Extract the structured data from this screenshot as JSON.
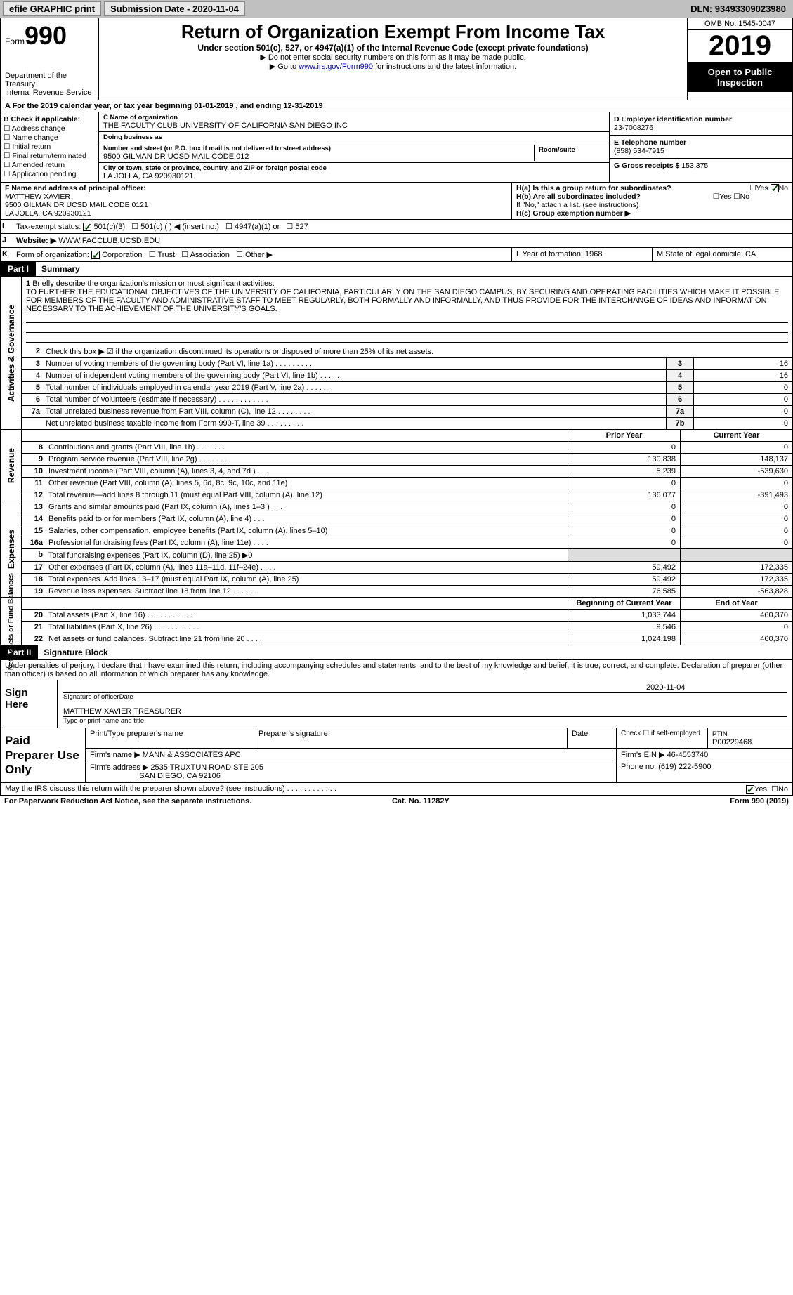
{
  "topbar": {
    "efile": "efile GRAPHIC print",
    "subdate_label": "Submission Date - ",
    "subdate": "2020-11-04",
    "dln_label": "DLN: ",
    "dln": "93493309023980"
  },
  "header": {
    "form_word": "Form",
    "form_num": "990",
    "dept": "Department of the Treasury\nInternal Revenue Service",
    "title": "Return of Organization Exempt From Income Tax",
    "sub": "Under section 501(c), 527, or 4947(a)(1) of the Internal Revenue Code (except private foundations)",
    "line1": "▶ Do not enter social security numbers on this form as it may be made public.",
    "line2a": "▶ Go to ",
    "line2link": "www.irs.gov/Form990",
    "line2b": " for instructions and the latest information.",
    "omb": "OMB No. 1545-0047",
    "year": "2019",
    "inspect": "Open to Public Inspection"
  },
  "rowA": "A For the 2019 calendar year, or tax year beginning 01-01-2019    , and ending 12-31-2019",
  "colB": {
    "hdr": "B Check if applicable:",
    "items": [
      "Address change",
      "Name change",
      "Initial return",
      "Final return/terminated",
      "Amended return",
      "Application pending"
    ]
  },
  "colC": {
    "name_lbl": "C Name of organization",
    "name": "THE FACULTY CLUB UNIVERSITY OF CALIFORNIA SAN DIEGO INC",
    "dba_lbl": "Doing business as",
    "dba": "",
    "addr_lbl": "Number and street (or P.O. box if mail is not delivered to street address)",
    "addr": "9500 GILMAN DR UCSD MAIL CODE 012",
    "room_lbl": "Room/suite",
    "city_lbl": "City or town, state or province, country, and ZIP or foreign postal code",
    "city": "LA JOLLA, CA  920930121"
  },
  "colD": {
    "ein_lbl": "D Employer identification number",
    "ein": "23-7008276",
    "tel_lbl": "E Telephone number",
    "tel": "(858) 534-7915",
    "gross_lbl": "G Gross receipts $ ",
    "gross": "153,375"
  },
  "rowF": {
    "lbl": "F Name and address of principal officer:",
    "name": "MATTHEW XAVIER",
    "addr1": "9500 GILMAN DR UCSD MAIL CODE 0121",
    "addr2": "LA JOLLA, CA  920930121"
  },
  "rowH": {
    "ha": "H(a)  Is this a group return for subordinates?",
    "ha_yes": "Yes",
    "ha_no": "No",
    "hb": "H(b)  Are all subordinates included?",
    "hb_yes": "Yes",
    "hb_no": "No",
    "hb_note": "If \"No,\" attach a list. (see instructions)",
    "hc": "H(c)  Group exemption number ▶"
  },
  "rowI": {
    "lbl": "I",
    "txt": "Tax-exempt status:",
    "opts": [
      "501(c)(3)",
      "501(c) (  ) ◀ (insert no.)",
      "4947(a)(1) or",
      "527"
    ]
  },
  "rowJ": {
    "lbl": "J",
    "txt": "Website: ▶ ",
    "val": "WWW.FACCLUB.UCSD.EDU"
  },
  "rowK": {
    "lbl": "K",
    "txt": "Form of organization:",
    "opts": [
      "Corporation",
      "Trust",
      "Association",
      "Other ▶"
    ]
  },
  "rowL": "L Year of formation: 1968",
  "rowM": "M State of legal domicile: CA",
  "part1": {
    "tab": "Part I",
    "title": "Summary",
    "side_ag": "Activities & Governance",
    "side_rev": "Revenue",
    "side_exp": "Expenses",
    "side_na": "Net Assets or Fund Balances",
    "l1_lbl": "1",
    "l1_txt": "Briefly describe the organization's mission or most significant activities:",
    "l1_mission": "TO FURTHER THE EDUCATIONAL OBJECTIVES OF THE UNIVERSITY OF CALIFORNIA, PARTICULARLY ON THE SAN DIEGO CAMPUS, BY SECURING AND OPERATING FACILITIES WHICH MAKE IT POSSIBLE FOR MEMBERS OF THE FACULTY AND ADMINISTRATIVE STAFF TO MEET REGULARLY, BOTH FORMALLY AND INFORMALLY, AND THUS PROVIDE FOR THE INTERCHANGE OF IDEAS AND INFORMATION NECESSARY TO THE ACHIEVEMENT OF THE UNIVERSITY'S GOALS.",
    "l2_txt": "Check this box ▶ ☑ if the organization discontinued its operations or disposed of more than 25% of its net assets.",
    "lines_gov": [
      {
        "n": "3",
        "t": "Number of voting members of the governing body (Part VI, line 1a)  .    .    .    .    .    .    .    .    .",
        "k": "3",
        "v": "16"
      },
      {
        "n": "4",
        "t": "Number of independent voting members of the governing body (Part VI, line 1b)    .    .    .    .    .",
        "k": "4",
        "v": "16"
      },
      {
        "n": "5",
        "t": "Total number of individuals employed in calendar year 2019 (Part V, line 2a)    .    .    .    .    .    .",
        "k": "5",
        "v": "0"
      },
      {
        "n": "6",
        "t": "Total number of volunteers (estimate if necessary)    .    .    .    .    .    .    .    .    .    .    .    .",
        "k": "6",
        "v": "0"
      },
      {
        "n": "7a",
        "t": "Total unrelated business revenue from Part VIII, column (C), line 12    .    .    .    .    .    .    .    .",
        "k": "7a",
        "v": "0"
      },
      {
        "n": "",
        "t": "Net unrelated business taxable income from Form 990-T, line 39    .    .    .    .    .    .    .    .    .",
        "k": "7b",
        "v": "0"
      }
    ],
    "col_prior": "Prior Year",
    "col_curr": "Current Year",
    "lines_rev": [
      {
        "n": "8",
        "t": "Contributions and grants (Part VIII, line 1h)    .    .    .    .    .    .    .",
        "p": "0",
        "c": "0"
      },
      {
        "n": "9",
        "t": "Program service revenue (Part VIII, line 2g)    .    .    .    .    .    .    .",
        "p": "130,838",
        "c": "148,137"
      },
      {
        "n": "10",
        "t": "Investment income (Part VIII, column (A), lines 3, 4, and 7d )    .    .    .",
        "p": "5,239",
        "c": "-539,630"
      },
      {
        "n": "11",
        "t": "Other revenue (Part VIII, column (A), lines 5, 6d, 8c, 9c, 10c, and 11e)",
        "p": "0",
        "c": "0"
      },
      {
        "n": "12",
        "t": "Total revenue—add lines 8 through 11 (must equal Part VIII, column (A), line 12)",
        "p": "136,077",
        "c": "-391,493"
      }
    ],
    "lines_exp": [
      {
        "n": "13",
        "t": "Grants and similar amounts paid (Part IX, column (A), lines 1–3 )   .    .    .",
        "p": "0",
        "c": "0"
      },
      {
        "n": "14",
        "t": "Benefits paid to or for members (Part IX, column (A), line 4)    .    .    .",
        "p": "0",
        "c": "0"
      },
      {
        "n": "15",
        "t": "Salaries, other compensation, employee benefits (Part IX, column (A), lines 5–10)",
        "p": "0",
        "c": "0"
      },
      {
        "n": "16a",
        "t": "Professional fundraising fees (Part IX, column (A), line 11e)    .    .    .    .",
        "p": "0",
        "c": "0"
      },
      {
        "n": "b",
        "t": "Total fundraising expenses (Part IX, column (D), line 25) ▶0",
        "p": "",
        "c": "",
        "shade": true
      },
      {
        "n": "17",
        "t": "Other expenses (Part IX, column (A), lines 11a–11d, 11f–24e)   .    .    .    .",
        "p": "59,492",
        "c": "172,335"
      },
      {
        "n": "18",
        "t": "Total expenses. Add lines 13–17 (must equal Part IX, column (A), line 25)",
        "p": "59,492",
        "c": "172,335"
      },
      {
        "n": "19",
        "t": "Revenue less expenses. Subtract line 18 from line 12    .    .    .    .    .    .",
        "p": "76,585",
        "c": "-563,828"
      }
    ],
    "col_boy": "Beginning of Current Year",
    "col_eoy": "End of Year",
    "lines_na": [
      {
        "n": "20",
        "t": "Total assets (Part X, line 16)    .    .    .    .    .    .    .    .    .    .    .",
        "p": "1,033,744",
        "c": "460,370"
      },
      {
        "n": "21",
        "t": "Total liabilities (Part X, line 26)    .    .    .    .    .    .    .    .    .    .    .",
        "p": "9,546",
        "c": "0"
      },
      {
        "n": "22",
        "t": "Net assets or fund balances. Subtract line 21 from line 20    .    .    .    .",
        "p": "1,024,198",
        "c": "460,370"
      }
    ]
  },
  "part2": {
    "tab": "Part II",
    "title": "Signature Block",
    "intro": "Under penalties of perjury, I declare that I have examined this return, including accompanying schedules and statements, and to the best of my knowledge and belief, it is true, correct, and complete. Declaration of preparer (other than officer) is based on all information of which preparer has any knowledge.",
    "sign_here": "Sign Here",
    "sig_date": "2020-11-04",
    "sig_of_officer": "Signature of officer",
    "date_lbl": "Date",
    "officer_name": "MATTHEW XAVIER TREASURER",
    "type_name_lbl": "Type or print name and title",
    "paid_prep": "Paid Preparer Use Only",
    "prep_name_lbl": "Print/Type preparer's name",
    "prep_sig_lbl": "Preparer's signature",
    "prep_date_lbl": "Date",
    "prep_check_lbl": "Check ☐ if self-employed",
    "ptin_lbl": "PTIN",
    "ptin": "P00229468",
    "firm_name_lbl": "Firm's name    ▶ ",
    "firm_name": "MANN & ASSOCIATES APC",
    "firm_ein_lbl": "Firm's EIN ▶ ",
    "firm_ein": "46-4553740",
    "firm_addr_lbl": "Firm's address ▶ ",
    "firm_addr1": "2535 TRUXTUN ROAD STE 205",
    "firm_addr2": "SAN DIEGO, CA  92106",
    "firm_phone_lbl": "Phone no. ",
    "firm_phone": "(619) 222-5900"
  },
  "footer": {
    "discuss": "May the IRS discuss this return with the preparer shown above? (see instructions)    .    .    .    .    .    .    .    .    .    .    .    .",
    "yes": "Yes",
    "no": "No",
    "paperwork": "For Paperwork Reduction Act Notice, see the separate instructions.",
    "cat": "Cat. No. 11282Y",
    "formref": "Form 990 (2019)"
  }
}
